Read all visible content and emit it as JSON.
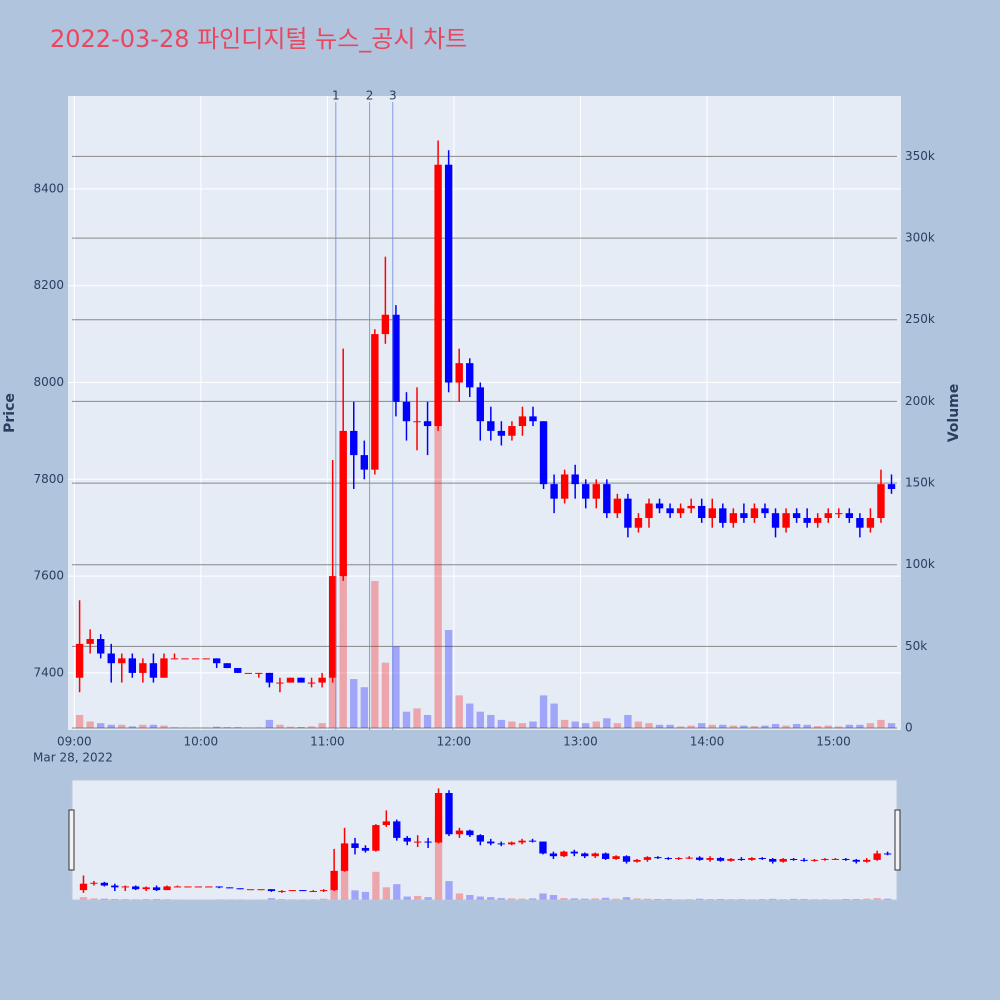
{
  "chart_data": {
    "type": "candlestick",
    "title": "2022-03-28 파인디지털 뉴스_공시 차트",
    "ylabel": "Price",
    "y2label": "Volume",
    "date_label": "Mar 28, 2022",
    "up_color": "#ff0000",
    "down_color": "#0000ff",
    "x": [
      "09:00",
      "09:05",
      "09:10",
      "09:15",
      "09:20",
      "09:25",
      "09:30",
      "09:35",
      "09:40",
      "09:45",
      "09:50",
      "09:55",
      "10:00",
      "10:05",
      "10:10",
      "10:15",
      "10:20",
      "10:25",
      "10:30",
      "10:35",
      "10:40",
      "10:45",
      "10:50",
      "10:55",
      "11:00",
      "11:05",
      "11:10",
      "11:15",
      "11:20",
      "11:25",
      "11:30",
      "11:35",
      "11:40",
      "11:45",
      "11:50",
      "11:55",
      "12:00",
      "12:05",
      "12:10",
      "12:15",
      "12:20",
      "12:25",
      "12:30",
      "12:35",
      "12:40",
      "12:45",
      "12:50",
      "12:55",
      "13:00",
      "13:05",
      "13:10",
      "13:15",
      "13:20",
      "13:25",
      "13:30",
      "13:35",
      "13:40",
      "13:45",
      "13:50",
      "13:55",
      "14:00",
      "14:05",
      "14:10",
      "14:15",
      "14:20",
      "14:25",
      "14:30",
      "14:35",
      "14:40",
      "14:45",
      "14:50",
      "14:55",
      "15:00",
      "15:05",
      "15:10",
      "15:15",
      "15:20",
      "15:25"
    ],
    "open": [
      7390,
      7460,
      7470,
      7440,
      7420,
      7430,
      7400,
      7420,
      7390,
      7430,
      7430,
      7430,
      7430,
      7430,
      7420,
      7410,
      7400,
      7400,
      7400,
      7380,
      7380,
      7390,
      7380,
      7380,
      7390,
      7600,
      7900,
      7850,
      7820,
      8100,
      8140,
      7960,
      7920,
      7920,
      7910,
      8450,
      8000,
      8040,
      7990,
      7920,
      7900,
      7890,
      7910,
      7930,
      7920,
      7790,
      7760,
      7810,
      7790,
      7760,
      7790,
      7730,
      7760,
      7700,
      7720,
      7750,
      7740,
      7730,
      7740,
      7745,
      7720,
      7740,
      7710,
      7730,
      7720,
      7740,
      7730,
      7700,
      7730,
      7720,
      7710,
      7720,
      7730,
      7730,
      7720,
      7700,
      7720,
      7790
    ],
    "high": [
      7550,
      7490,
      7480,
      7460,
      7440,
      7440,
      7430,
      7440,
      7440,
      7440,
      7430,
      7430,
      7430,
      7430,
      7420,
      7410,
      7400,
      7400,
      7400,
      7390,
      7390,
      7390,
      7390,
      7400,
      7840,
      8070,
      7960,
      7880,
      8110,
      8260,
      8160,
      7980,
      7990,
      7960,
      8500,
      8480,
      8070,
      8050,
      8000,
      7950,
      7920,
      7920,
      7950,
      7950,
      7920,
      7810,
      7820,
      7830,
      7800,
      7800,
      7800,
      7770,
      7770,
      7730,
      7760,
      7760,
      7750,
      7750,
      7760,
      7760,
      7760,
      7750,
      7740,
      7750,
      7750,
      7750,
      7740,
      7740,
      7740,
      7740,
      7730,
      7740,
      7740,
      7740,
      7730,
      7740,
      7820,
      7810
    ],
    "low": [
      7360,
      7440,
      7430,
      7380,
      7380,
      7390,
      7380,
      7380,
      7390,
      7430,
      7430,
      7430,
      7430,
      7410,
      7410,
      7400,
      7400,
      7390,
      7370,
      7360,
      7380,
      7380,
      7370,
      7370,
      7380,
      7590,
      7780,
      7800,
      7810,
      8080,
      7930,
      7880,
      7860,
      7850,
      7900,
      7980,
      7960,
      7970,
      7880,
      7880,
      7870,
      7880,
      7890,
      7910,
      7780,
      7730,
      7750,
      7760,
      7740,
      7740,
      7720,
      7720,
      7680,
      7690,
      7700,
      7730,
      7720,
      7720,
      7730,
      7710,
      7700,
      7700,
      7700,
      7710,
      7710,
      7720,
      7680,
      7690,
      7710,
      7700,
      7700,
      7710,
      7720,
      7710,
      7680,
      7690,
      7710,
      7770
    ],
    "close": [
      7460,
      7470,
      7440,
      7420,
      7430,
      7400,
      7420,
      7390,
      7430,
      7430,
      7430,
      7430,
      7430,
      7420,
      7410,
      7400,
      7400,
      7400,
      7380,
      7380,
      7390,
      7380,
      7380,
      7390,
      7600,
      7900,
      7850,
      7820,
      8100,
      8140,
      7960,
      7920,
      7920,
      7910,
      8450,
      8000,
      8040,
      7990,
      7920,
      7900,
      7890,
      7910,
      7930,
      7920,
      7790,
      7760,
      7810,
      7790,
      7760,
      7790,
      7730,
      7760,
      7700,
      7720,
      7750,
      7740,
      7730,
      7740,
      7745,
      7720,
      7740,
      7710,
      7730,
      7720,
      7740,
      7730,
      7700,
      7730,
      7720,
      7710,
      7720,
      7730,
      7730,
      7720,
      7700,
      7720,
      7790,
      7780
    ],
    "volume": [
      8000,
      4000,
      3000,
      2000,
      2000,
      1000,
      2000,
      2000,
      1500,
      500,
      300,
      300,
      300,
      800,
      500,
      500,
      300,
      400,
      5000,
      2000,
      800,
      600,
      1000,
      3000,
      60000,
      100000,
      30000,
      25000,
      90000,
      40000,
      50000,
      10000,
      12000,
      8000,
      260000,
      60000,
      20000,
      15000,
      10000,
      8000,
      5000,
      4000,
      3000,
      4000,
      20000,
      15000,
      5000,
      4000,
      3000,
      4000,
      6000,
      3000,
      8000,
      4000,
      3000,
      2000,
      2000,
      1000,
      1500,
      3000,
      2000,
      2000,
      1500,
      1500,
      1200,
      1500,
      2500,
      1500,
      2500,
      2000,
      1200,
      1500,
      1000,
      2000,
      2000,
      3000,
      5000,
      3000
    ],
    "xlim": [
      "08:57",
      "15:32"
    ],
    "xticks": [
      "09:00",
      "10:00",
      "11:00",
      "12:00",
      "13:00",
      "14:00",
      "15:00"
    ],
    "ylim": [
      7282,
      8592
    ],
    "yticks": [
      7400,
      7600,
      7800,
      8000,
      8200,
      8400
    ],
    "y2lim": [
      -1200,
      387000
    ],
    "y2ticks": [
      0,
      {
        "value": 50000,
        "label": "50k"
      },
      {
        "value": 100000,
        "label": "100k"
      },
      {
        "value": 150000,
        "label": "150k"
      },
      {
        "value": 200000,
        "label": "200k"
      },
      {
        "value": 250000,
        "label": "250k"
      },
      {
        "value": 300000,
        "label": "300k"
      },
      {
        "value": 350000,
        "label": "350k"
      }
    ],
    "annotations": [
      {
        "x": "11:04",
        "label": "1"
      },
      {
        "x": "11:20",
        "label": "2"
      },
      {
        "x": "11:31",
        "label": "3"
      }
    ]
  }
}
